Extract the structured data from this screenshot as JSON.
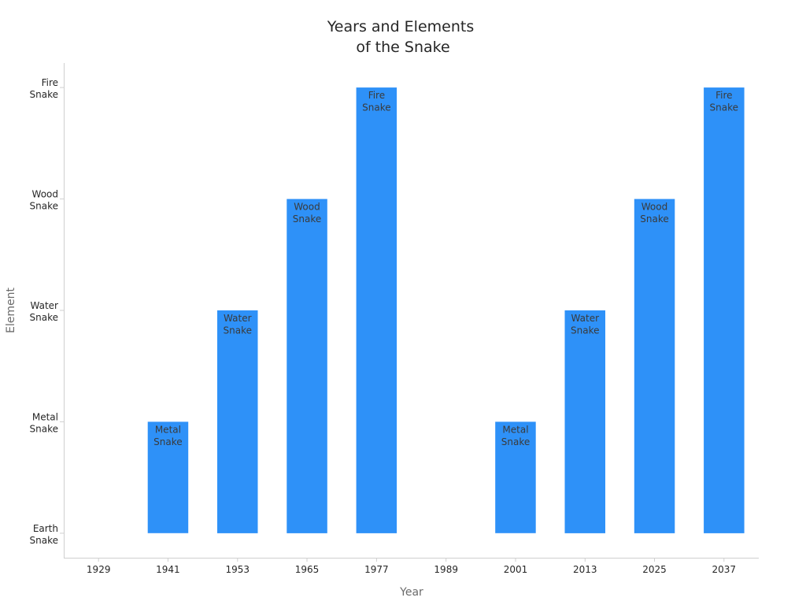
{
  "chart_data": {
    "type": "bar",
    "title": [
      "Years and Elements",
      "of the Snake"
    ],
    "xlabel": "Year",
    "ylabel": "Element",
    "x_ticks": [
      1929,
      1941,
      1953,
      1965,
      1977,
      1989,
      2001,
      2013,
      2025,
      2037
    ],
    "y_ticks": [
      {
        "value": 0,
        "label": [
          "Earth",
          "Snake"
        ]
      },
      {
        "value": 1,
        "label": [
          "Metal",
          "Snake"
        ]
      },
      {
        "value": 2,
        "label": [
          "Water",
          "Snake"
        ]
      },
      {
        "value": 3,
        "label": [
          "Wood",
          "Snake"
        ]
      },
      {
        "value": 4,
        "label": [
          "Fire",
          "Snake"
        ]
      }
    ],
    "bars": [
      {
        "x": 1941,
        "value": 1,
        "label": [
          "Metal",
          "Snake"
        ]
      },
      {
        "x": 1953,
        "value": 2,
        "label": [
          "Water",
          "Snake"
        ]
      },
      {
        "x": 1965,
        "value": 3,
        "label": [
          "Wood",
          "Snake"
        ]
      },
      {
        "x": 1977,
        "value": 4,
        "label": [
          "Fire",
          "Snake"
        ]
      },
      {
        "x": 2001,
        "value": 1,
        "label": [
          "Metal",
          "Snake"
        ]
      },
      {
        "x": 2013,
        "value": 2,
        "label": [
          "Water",
          "Snake"
        ]
      },
      {
        "x": 2025,
        "value": 3,
        "label": [
          "Wood",
          "Snake"
        ]
      },
      {
        "x": 2037,
        "value": 4,
        "label": [
          "Fire",
          "Snake"
        ]
      }
    ],
    "xlim": [
      1923,
      2043
    ],
    "ylim": [
      -0.22,
      4.22
    ],
    "bar_color": "#2e91f8",
    "grid": false,
    "legend": "none"
  }
}
